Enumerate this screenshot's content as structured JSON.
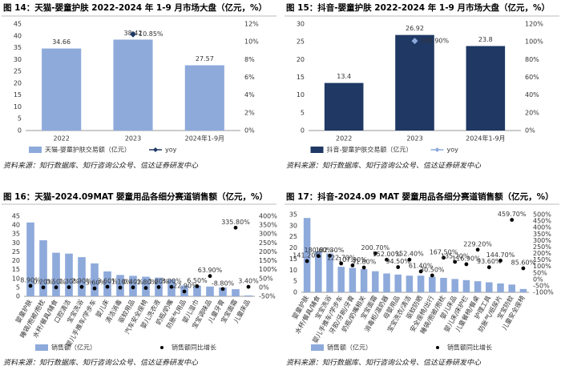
{
  "chart_data": [
    {
      "type": "bar",
      "title": "图 14：天猫-婴童护肤 2022-2024 年 1-9 月市场大盘（亿元，%）",
      "source": "资料来源：知行数据库、知行咨询公众号、信达证券研发中心",
      "categories": [
        "2022",
        "2023",
        "2024年1-9月"
      ],
      "series": [
        {
          "name": "天猫-婴童护肤交易额（亿元）",
          "color": "#8eaadb",
          "values": [
            34.66,
            38.42,
            27.57
          ]
        },
        {
          "name": "yoy",
          "color": "#1f3864",
          "axis": "y2",
          "marker": "diamond",
          "values": [
            null,
            10.85,
            null
          ],
          "value_labels": [
            null,
            "10.85%",
            null
          ]
        }
      ],
      "ylim": [
        0,
        45
      ],
      "yticks": [
        0,
        5,
        10,
        15,
        20,
        25,
        30,
        35,
        40,
        45
      ],
      "y2lim": [
        0,
        12
      ],
      "y2ticks": [
        {
          "value": 0,
          "label": "0%"
        },
        {
          "value": 2,
          "label": "2%"
        },
        {
          "value": 4,
          "label": "4%"
        },
        {
          "value": 6,
          "label": "6%"
        },
        {
          "value": 8,
          "label": "8%"
        },
        {
          "value": 10,
          "label": "10%"
        },
        {
          "value": 12,
          "label": "12%"
        }
      ]
    },
    {
      "type": "bar",
      "title": "图 15：抖音-婴童护肤 2022-2024 年 1-9 月市场大盘（亿元，%）",
      "source": "资料来源：知行数据库、知行咨询公众号、信达证券研发中心",
      "categories": [
        "2022",
        "2023",
        "2024年1-9月"
      ],
      "series": [
        {
          "name": "抖音-婴童护肤交易额（亿元）",
          "color": "#1f3864",
          "values": [
            13.4,
            26.92,
            23.8
          ]
        },
        {
          "name": "yoy",
          "color": "#8eaadb",
          "axis": "y2",
          "marker": "diamond",
          "values": [
            null,
            100.9,
            null
          ],
          "value_labels": [
            null,
            "100.90%",
            null
          ]
        }
      ],
      "ylim": [
        0,
        30
      ],
      "yticks": [
        0,
        5,
        10,
        15,
        20,
        25,
        30
      ],
      "y2lim": [
        0,
        120
      ],
      "y2ticks": [
        {
          "value": 0,
          "label": "0%"
        },
        {
          "value": 20,
          "label": "20%"
        },
        {
          "value": 40,
          "label": "40%"
        },
        {
          "value": 60,
          "label": "60%"
        },
        {
          "value": 80,
          "label": "80%"
        },
        {
          "value": 100,
          "label": "100%"
        },
        {
          "value": 120,
          "label": "120%"
        }
      ]
    },
    {
      "type": "bar",
      "title": "图 16：天猫-2024.09MAT 婴童用品各细分赛道销售额（亿元，%）",
      "source": "资料来源：知行数据库、知行咨询公众号、信达证券研发中心",
      "categories": [
        "婴童护肤",
        "睡袋/抱被/抱枕",
        "水杯/餐具/辅食",
        "口腔清洁",
        "宝宝洗浴",
        "婴儿手推车/学步车",
        "婴儿床",
        "清洁消毒",
        "驱蚊用品",
        "汽车安全座椅",
        "婴儿洗衣液",
        "奶瓶/奶嘴",
        "防胀气用品",
        "婴儿湿巾",
        "宝宝调味品",
        "儿童牙膏",
        "宝宝面霜",
        "儿童床品"
      ],
      "series": [
        {
          "name": "销售额（亿元）",
          "color": "#8eaadb",
          "values": [
            41.5,
            31.5,
            24.5,
            24,
            22,
            18.5,
            14,
            12,
            11.5,
            11,
            10.5,
            9.5,
            6,
            6,
            5.5,
            5,
            4,
            0.5
          ]
        },
        {
          "name": "销售额同比增长",
          "color": "#000000",
          "axis": "y2",
          "marker": "circle",
          "values": [
            8.9,
            0.2,
            0.5,
            1.3,
            2.9,
            -5.6,
            3.6,
            -1.1,
            0.4,
            -2.8,
            1.8,
            3.0,
            -22.9,
            6.5,
            63.9,
            -8.8,
            335.8,
            3.4
          ],
          "value_labels": [
            "8.90%",
            "0.20%",
            "0.50%",
            "1.30%",
            "2.90%",
            "-5.60%",
            "3.60%",
            "-1.10%",
            "0.40%",
            "-2.80%",
            "1.80%",
            "3.00%",
            "-22.90%",
            "6.50%",
            "63.90%",
            "-8.80%",
            "335.80%",
            "3.40%"
          ]
        }
      ],
      "ylim": [
        0,
        45
      ],
      "yticks": [
        0,
        5,
        10,
        15,
        20,
        25,
        30,
        35,
        40,
        45
      ],
      "y2lim": [
        -50,
        400
      ],
      "y2ticks": [
        {
          "value": -50,
          "label": "-50%"
        },
        {
          "value": 0,
          "label": "0%"
        },
        {
          "value": 50,
          "label": "50%"
        },
        {
          "value": 100,
          "label": "100%"
        },
        {
          "value": 150,
          "label": "150%"
        },
        {
          "value": 200,
          "label": "200%"
        },
        {
          "value": 250,
          "label": "250%"
        },
        {
          "value": 300,
          "label": "300%"
        },
        {
          "value": 350,
          "label": "350%"
        },
        {
          "value": 400,
          "label": "400%"
        }
      ]
    },
    {
      "type": "bar",
      "title": "图 17：抖音-2024.09 MAT 婴童用品各细分赛道销售额（亿元，%）",
      "source": "资料来源：知行数据库、知行咨询公众号、信达证券研发中心",
      "categories": [
        "婴童护肤",
        "水杯/餐具/辅食",
        "宝宝洗浴",
        "婴儿手推车/学步车",
        "牙胶/牙刷/牙膏",
        "奶瓶/奶嘴相关",
        "宝宝面霜",
        "消毒柜/温奶器",
        "母婴用品",
        "宝宝洗衣/清洁",
        "驱蚊防晒",
        "安全座椅/出行",
        "睡袋/抱被/抱枕",
        "婴儿床品",
        "婴儿床/床护栏",
        "儿童餐椅/餐桌",
        "护理工具",
        "防胀气/纸尿片",
        "宝宝防蚊",
        "儿童安全座椅"
      ],
      "series": [
        {
          "name": "销售额（亿元）",
          "color": "#8eaadb",
          "values": [
            33.5,
            18.5,
            17.5,
            11.5,
            11,
            10.5,
            9.5,
            8.5,
            8,
            7.5,
            7.5,
            7,
            6.5,
            6,
            5.5,
            5,
            4.5,
            4,
            3.5,
            1.5
          ]
        },
        {
          "name": "销售额同比增长",
          "color": "#000000",
          "axis": "y2",
          "marker": "circle",
          "values": [
            141.2,
            180.6,
            182.3,
            122.7,
            107.9,
            91.8,
            200.7,
            152.0,
            94.5,
            152.4,
            61.4,
            30.5,
            167.5,
            135.2,
            116.9,
            229.2,
            93.6,
            144.7,
            459.7,
            85.6
          ],
          "value_labels": [
            "141.20%",
            "180.60%",
            "182.30%",
            "122.70%",
            "107.90%",
            "91.80%",
            "200.70%",
            "152.00%",
            "94.50%",
            "152.40%",
            "61.40%",
            "30.50%",
            "167.50%",
            "135.20%",
            "116.90%",
            "229.20%",
            "93.60%",
            "144.70%",
            "459.70%",
            "85.60%"
          ]
        }
      ],
      "ylim": [
        0,
        35
      ],
      "yticks": [
        0,
        5,
        10,
        15,
        20,
        25,
        30,
        35
      ],
      "y2lim": [
        -100,
        500
      ],
      "y2ticks": [
        {
          "value": -100,
          "label": "-100%"
        },
        {
          "value": -50,
          "label": "-50%"
        },
        {
          "value": 0,
          "label": "0%"
        },
        {
          "value": 50,
          "label": "50%"
        },
        {
          "value": 100,
          "label": "100%"
        },
        {
          "value": 150,
          "label": "150%"
        },
        {
          "value": 200,
          "label": "200%"
        },
        {
          "value": 250,
          "label": "250%"
        },
        {
          "value": 300,
          "label": "300%"
        },
        {
          "value": 350,
          "label": "350%"
        },
        {
          "value": 400,
          "label": "400%"
        },
        {
          "value": 450,
          "label": "450%"
        },
        {
          "value": 500,
          "label": "500%"
        }
      ]
    }
  ]
}
